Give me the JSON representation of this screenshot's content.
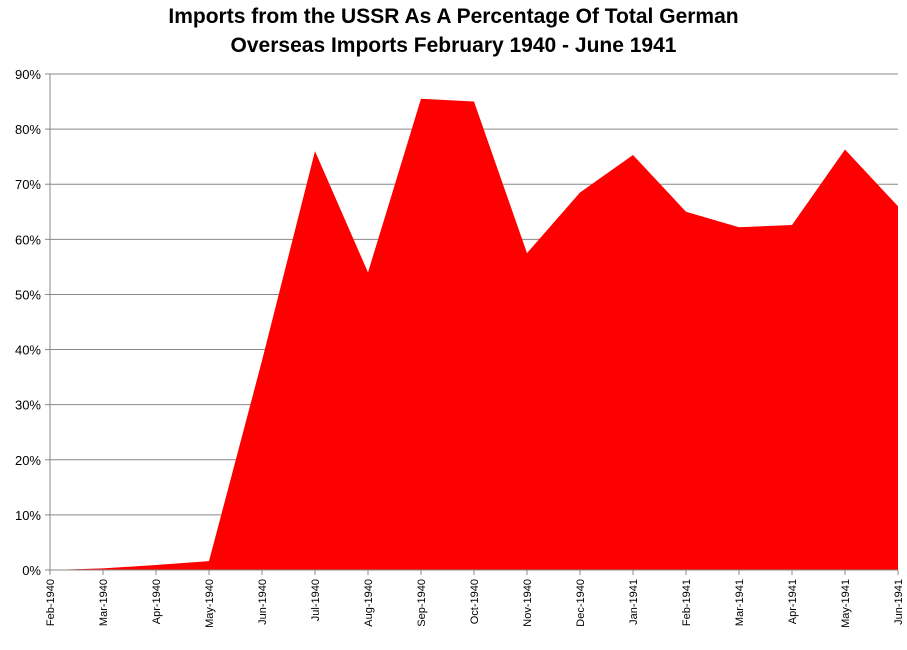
{
  "chart_data": {
    "type": "area",
    "title_lines": [
      "Imports from the USSR As A Percentage Of Total German",
      "Overseas Imports February 1940 - June 1941"
    ],
    "xlabel": "",
    "ylabel": "",
    "categories": [
      "Feb-1940",
      "Mar-1940",
      "Apr-1940",
      "May-1940",
      "Jun-1940",
      "Jul-1940",
      "Aug-1940",
      "Sep-1940",
      "Oct-1940",
      "Nov-1940",
      "Dec-1940",
      "Jan-1941",
      "Feb-1941",
      "Mar-1941",
      "Apr-1941",
      "May-1941",
      "Jun-1941"
    ],
    "series": [
      {
        "values": [
          0.0,
          0.3,
          0.9,
          1.6,
          38.0,
          76.0,
          54.0,
          85.5,
          85.0,
          57.5,
          68.5,
          75.3,
          65.0,
          62.2,
          62.6,
          76.3,
          66.0
        ]
      }
    ],
    "ylim": [
      0,
      90
    ],
    "yticks": [
      0,
      10,
      20,
      30,
      40,
      50,
      60,
      70,
      80,
      90
    ],
    "ytick_labels": [
      "0%",
      "10%",
      "20%",
      "30%",
      "40%",
      "50%",
      "60%",
      "70%",
      "80%",
      "90%"
    ],
    "grid": true,
    "legend": "none",
    "colors": {
      "area": "#ff0000",
      "grid": "#888888",
      "axis": "#888888"
    }
  }
}
